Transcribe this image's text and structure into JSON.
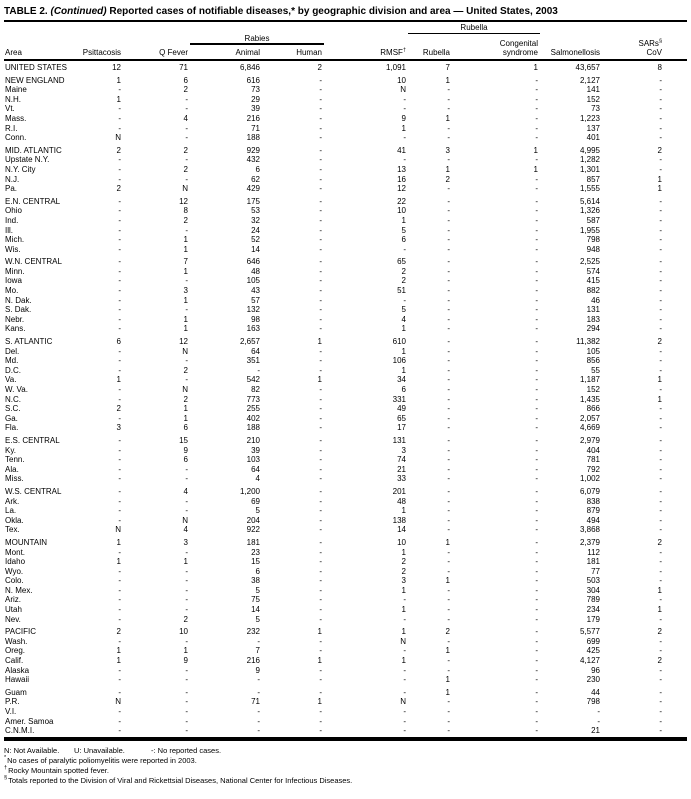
{
  "title": {
    "part1": "TABLE 2. ",
    "continued": "(Continued)",
    "part2": " Reported cases of notifiable diseases,* by geographic division and area — United States, 2003"
  },
  "header": {
    "area": "Area",
    "psittacosis": "Psittacosis",
    "q_fever": "Q Fever",
    "rabies_group": "Rabies",
    "animal": "Animal",
    "human": "Human",
    "rmsf": "RMSF",
    "rmsf_marker": "†",
    "rubella_group": "Rubella",
    "rubella": "Rubella",
    "congenital_1": "Congenital",
    "congenital_2": "syndrome",
    "salmonellosis": "Salmonellosis",
    "sars_1": "SARs",
    "sars_marker": "§",
    "sars_2": "CoV"
  },
  "table": {
    "column_keys": [
      "area",
      "psittacosis",
      "q_fever",
      "rabies_animal",
      "rabies_human",
      "rmsf",
      "rubella",
      "rubella_congenital_syndrome",
      "salmonellosis",
      "sars_cov"
    ],
    "groups": [
      {
        "rows": [
          [
            "UNITED STATES",
            "12",
            "71",
            "6,846",
            "2",
            "1,091",
            "7",
            "1",
            "43,657",
            "8"
          ]
        ]
      },
      {
        "rows": [
          [
            "NEW ENGLAND",
            "1",
            "6",
            "616",
            "-",
            "10",
            "1",
            "-",
            "2,127",
            "-"
          ],
          [
            "Maine",
            "-",
            "2",
            "73",
            "-",
            "N",
            "-",
            "-",
            "141",
            "-"
          ],
          [
            "N.H.",
            "1",
            "-",
            "29",
            "-",
            "-",
            "-",
            "-",
            "152",
            "-"
          ],
          [
            "Vt.",
            "-",
            "-",
            "39",
            "-",
            "-",
            "-",
            "-",
            "73",
            "-"
          ],
          [
            "Mass.",
            "-",
            "4",
            "216",
            "-",
            "9",
            "1",
            "-",
            "1,223",
            "-"
          ],
          [
            "R.I.",
            "-",
            "-",
            "71",
            "-",
            "1",
            "-",
            "-",
            "137",
            "-"
          ],
          [
            "Conn.",
            "N",
            "-",
            "188",
            "-",
            "-",
            "-",
            "-",
            "401",
            "-"
          ]
        ]
      },
      {
        "rows": [
          [
            "MID. ATLANTIC",
            "2",
            "2",
            "929",
            "-",
            "41",
            "3",
            "1",
            "4,995",
            "2"
          ],
          [
            "Upstate N.Y.",
            "-",
            "-",
            "432",
            "-",
            "-",
            "-",
            "-",
            "1,282",
            "-"
          ],
          [
            "N.Y. City",
            "-",
            "2",
            "6",
            "-",
            "13",
            "1",
            "1",
            "1,301",
            "-"
          ],
          [
            "N.J.",
            "-",
            "-",
            "62",
            "-",
            "16",
            "2",
            "-",
            "857",
            "1"
          ],
          [
            "Pa.",
            "2",
            "N",
            "429",
            "-",
            "12",
            "-",
            "-",
            "1,555",
            "1"
          ]
        ]
      },
      {
        "rows": [
          [
            "E.N. CENTRAL",
            "-",
            "12",
            "175",
            "-",
            "22",
            "-",
            "-",
            "5,614",
            "-"
          ],
          [
            "Ohio",
            "-",
            "8",
            "53",
            "-",
            "10",
            "-",
            "-",
            "1,326",
            "-"
          ],
          [
            "Ind.",
            "-",
            "2",
            "32",
            "-",
            "1",
            "-",
            "-",
            "587",
            "-"
          ],
          [
            "Ill.",
            "-",
            "-",
            "24",
            "-",
            "5",
            "-",
            "-",
            "1,955",
            "-"
          ],
          [
            "Mich.",
            "-",
            "1",
            "52",
            "-",
            "6",
            "-",
            "-",
            "798",
            "-"
          ],
          [
            "Wis.",
            "-",
            "1",
            "14",
            "-",
            "-",
            "-",
            "-",
            "948",
            "-"
          ]
        ]
      },
      {
        "rows": [
          [
            "W.N. CENTRAL",
            "-",
            "7",
            "646",
            "-",
            "65",
            "-",
            "-",
            "2,525",
            "-"
          ],
          [
            "Minn.",
            "-",
            "1",
            "48",
            "-",
            "2",
            "-",
            "-",
            "574",
            "-"
          ],
          [
            "Iowa",
            "-",
            "-",
            "105",
            "-",
            "2",
            "-",
            "-",
            "415",
            "-"
          ],
          [
            "Mo.",
            "-",
            "3",
            "43",
            "-",
            "51",
            "-",
            "-",
            "882",
            "-"
          ],
          [
            "N. Dak.",
            "-",
            "1",
            "57",
            "-",
            "-",
            "-",
            "-",
            "46",
            "-"
          ],
          [
            "S. Dak.",
            "-",
            "-",
            "132",
            "-",
            "5",
            "-",
            "-",
            "131",
            "-"
          ],
          [
            "Nebr.",
            "-",
            "1",
            "98",
            "-",
            "4",
            "-",
            "-",
            "183",
            "-"
          ],
          [
            "Kans.",
            "-",
            "1",
            "163",
            "-",
            "1",
            "-",
            "-",
            "294",
            "-"
          ]
        ]
      },
      {
        "rows": [
          [
            "S. ATLANTIC",
            "6",
            "12",
            "2,657",
            "1",
            "610",
            "-",
            "-",
            "11,382",
            "2"
          ],
          [
            "Del.",
            "-",
            "N",
            "64",
            "-",
            "1",
            "-",
            "-",
            "105",
            "-"
          ],
          [
            "Md.",
            "-",
            "-",
            "351",
            "-",
            "106",
            "-",
            "-",
            "856",
            "-"
          ],
          [
            "D.C.",
            "-",
            "2",
            "-",
            "-",
            "1",
            "-",
            "-",
            "55",
            "-"
          ],
          [
            "Va.",
            "1",
            "-",
            "542",
            "1",
            "34",
            "-",
            "-",
            "1,187",
            "1"
          ],
          [
            "W. Va.",
            "-",
            "N",
            "82",
            "-",
            "6",
            "-",
            "-",
            "152",
            "-"
          ],
          [
            "N.C.",
            "-",
            "2",
            "773",
            "-",
            "331",
            "-",
            "-",
            "1,435",
            "1"
          ],
          [
            "S.C.",
            "2",
            "1",
            "255",
            "-",
            "49",
            "-",
            "-",
            "866",
            "-"
          ],
          [
            "Ga.",
            "-",
            "1",
            "402",
            "-",
            "65",
            "-",
            "-",
            "2,057",
            "-"
          ],
          [
            "Fla.",
            "3",
            "6",
            "188",
            "-",
            "17",
            "-",
            "-",
            "4,669",
            "-"
          ]
        ]
      },
      {
        "rows": [
          [
            "E.S. CENTRAL",
            "-",
            "15",
            "210",
            "-",
            "131",
            "-",
            "-",
            "2,979",
            "-"
          ],
          [
            "Ky.",
            "-",
            "9",
            "39",
            "-",
            "3",
            "-",
            "-",
            "404",
            "-"
          ],
          [
            "Tenn.",
            "-",
            "6",
            "103",
            "-",
            "74",
            "-",
            "-",
            "781",
            "-"
          ],
          [
            "Ala.",
            "-",
            "-",
            "64",
            "-",
            "21",
            "-",
            "-",
            "792",
            "-"
          ],
          [
            "Miss.",
            "-",
            "-",
            "4",
            "-",
            "33",
            "-",
            "-",
            "1,002",
            "-"
          ]
        ]
      },
      {
        "rows": [
          [
            "W.S. CENTRAL",
            "-",
            "4",
            "1,200",
            "-",
            "201",
            "-",
            "-",
            "6,079",
            "-"
          ],
          [
            "Ark.",
            "-",
            "-",
            "69",
            "-",
            "48",
            "-",
            "-",
            "838",
            "-"
          ],
          [
            "La.",
            "-",
            "-",
            "5",
            "-",
            "1",
            "-",
            "-",
            "879",
            "-"
          ],
          [
            "Okla.",
            "-",
            "N",
            "204",
            "-",
            "138",
            "-",
            "-",
            "494",
            "-"
          ],
          [
            "Tex.",
            "N",
            "4",
            "922",
            "-",
            "14",
            "-",
            "-",
            "3,868",
            "-"
          ]
        ]
      },
      {
        "rows": [
          [
            "MOUNTAIN",
            "1",
            "3",
            "181",
            "-",
            "10",
            "1",
            "-",
            "2,379",
            "2"
          ],
          [
            "Mont.",
            "-",
            "-",
            "23",
            "-",
            "1",
            "-",
            "-",
            "112",
            "-"
          ],
          [
            "Idaho",
            "1",
            "1",
            "15",
            "-",
            "2",
            "-",
            "-",
            "181",
            "-"
          ],
          [
            "Wyo.",
            "-",
            "-",
            "6",
            "-",
            "2",
            "-",
            "-",
            "77",
            "-"
          ],
          [
            "Colo.",
            "-",
            "-",
            "38",
            "-",
            "3",
            "1",
            "-",
            "503",
            "-"
          ],
          [
            "N. Mex.",
            "-",
            "-",
            "5",
            "-",
            "1",
            "-",
            "-",
            "304",
            "1"
          ],
          [
            "Ariz.",
            "-",
            "-",
            "75",
            "-",
            "-",
            "-",
            "-",
            "789",
            "-"
          ],
          [
            "Utah",
            "-",
            "-",
            "14",
            "-",
            "1",
            "-",
            "-",
            "234",
            "1"
          ],
          [
            "Nev.",
            "-",
            "2",
            "5",
            "-",
            "-",
            "-",
            "-",
            "179",
            "-"
          ]
        ]
      },
      {
        "rows": [
          [
            "PACIFIC",
            "2",
            "10",
            "232",
            "1",
            "1",
            "2",
            "-",
            "5,577",
            "2"
          ],
          [
            "Wash.",
            "-",
            "-",
            "-",
            "-",
            "N",
            "-",
            "-",
            "699",
            "-"
          ],
          [
            "Oreg.",
            "1",
            "1",
            "7",
            "-",
            "-",
            "1",
            "-",
            "425",
            "-"
          ],
          [
            "Calif.",
            "1",
            "9",
            "216",
            "1",
            "1",
            "-",
            "-",
            "4,127",
            "2"
          ],
          [
            "Alaska",
            "-",
            "-",
            "9",
            "-",
            "-",
            "-",
            "-",
            "96",
            "-"
          ],
          [
            "Hawaii",
            "-",
            "-",
            "-",
            "-",
            "-",
            "1",
            "-",
            "230",
            "-"
          ]
        ]
      },
      {
        "rows": [
          [
            "Guam",
            "-",
            "-",
            "-",
            "-",
            "-",
            "1",
            "-",
            "44",
            "-"
          ],
          [
            "P.R.",
            "N",
            "-",
            "71",
            "1",
            "N",
            "-",
            "-",
            "798",
            "-"
          ],
          [
            "V.I.",
            "-",
            "-",
            "-",
            "-",
            "-",
            "-",
            "-",
            "-",
            "-"
          ],
          [
            "Amer. Samoa",
            "-",
            "-",
            "-",
            "-",
            "-",
            "-",
            "-",
            "-",
            "-"
          ],
          [
            "C.N.M.I.",
            "-",
            "-",
            "-",
            "-",
            "-",
            "-",
            "-",
            "21",
            "-"
          ]
        ]
      }
    ]
  },
  "footnotes": {
    "legend": [
      "N: Not Available.",
      "U: Unavailable.",
      "-: No reported cases."
    ],
    "notes": [
      {
        "marker": "*",
        "text": "No cases of paralytic poliomyelitis were reported in 2003."
      },
      {
        "marker": "†",
        "text": "Rocky Mountain spotted fever."
      },
      {
        "marker": "§",
        "text": "Totals reported to the Division of Viral and Rickettsial Diseases, National Center for Infectious Diseases."
      }
    ]
  }
}
